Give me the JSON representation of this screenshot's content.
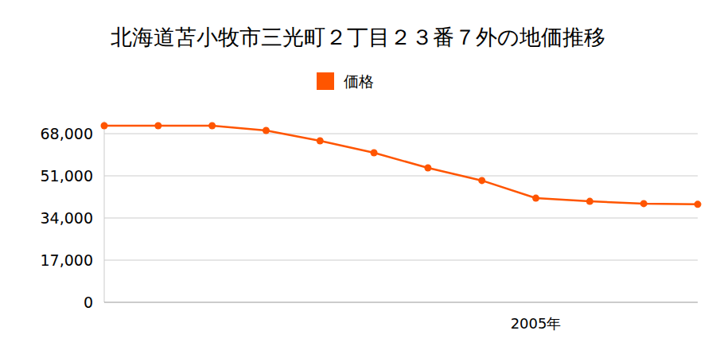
{
  "chart_data": {
    "type": "line",
    "title": "北海道苫小牧市三光町２丁目２３番７外の地価推移",
    "categories": [
      null,
      null,
      null,
      null,
      null,
      null,
      null,
      null,
      "2005年",
      null,
      null,
      null
    ],
    "series": [
      {
        "name": "価格",
        "color": "#ff5500",
        "marker": "circle",
        "values": [
          71200,
          71200,
          71200,
          69300,
          65100,
          60300,
          54200,
          49100,
          42000,
          40700,
          39800,
          39500
        ]
      }
    ],
    "ylim": [
      0,
      73000
    ],
    "yticks": [
      0,
      {
        "value": 17000,
        "label": "17,000"
      },
      {
        "value": 34000,
        "label": "34,000"
      },
      {
        "value": 51000,
        "label": "51,000"
      },
      {
        "value": 68000,
        "label": "68,000"
      }
    ],
    "grid": true,
    "legend": "top"
  }
}
